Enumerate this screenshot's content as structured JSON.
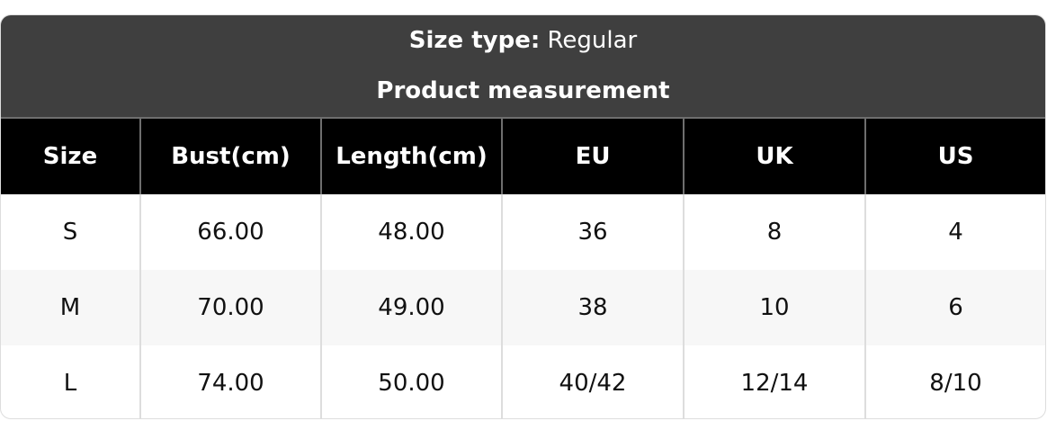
{
  "header": {
    "size_type_label": "Size type:",
    "size_type_value": "Regular",
    "section_title": "Product measurement"
  },
  "table": {
    "columns": [
      "Size",
      "Bust(cm)",
      "Length(cm)",
      "EU",
      "UK",
      "US"
    ],
    "rows": [
      [
        "S",
        "66.00",
        "48.00",
        "36",
        "8",
        "4"
      ],
      [
        "M",
        "70.00",
        "49.00",
        "38",
        "10",
        "6"
      ],
      [
        "L",
        "74.00",
        "50.00",
        "40/42",
        "12/14",
        "8/10"
      ]
    ]
  }
}
